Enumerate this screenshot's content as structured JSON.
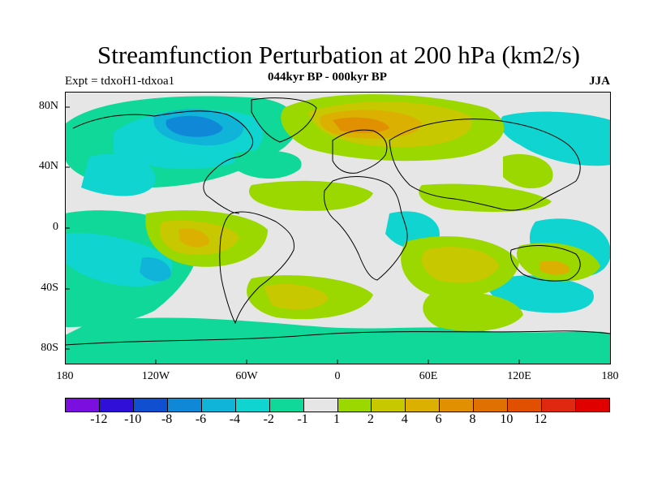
{
  "header": {
    "title": "Streamfunction Perturbation at 200 hPa (km2/s)",
    "subtitle": "044kyr BP - 000kyr BP",
    "left_label": "Expt = tdxoH1-tdxoa1",
    "right_label": "JJA"
  },
  "axes": {
    "y_ticks": [
      "80N",
      "40N",
      "0",
      "40S",
      "80S"
    ],
    "x_ticks": [
      "180",
      "120W",
      "60W",
      "0",
      "60E",
      "120E",
      "180"
    ]
  },
  "colorbar": {
    "colors": [
      "#7a0fe0",
      "#3010d8",
      "#1050d0",
      "#1088d8",
      "#10b4d8",
      "#10d4d0",
      "#10d898",
      "#e6e6e6",
      "#9ad800",
      "#c8c800",
      "#dcb000",
      "#e09000",
      "#e07000",
      "#e05000",
      "#e02810",
      "#e00000"
    ],
    "labels": [
      "-12",
      "-10",
      "-8",
      "-6",
      "-4",
      "-2",
      "-1",
      "1",
      "2",
      "4",
      "6",
      "8",
      "10",
      "12"
    ]
  },
  "palette": {
    "background": "#e6e6e6",
    "coastline": "#000000"
  }
}
